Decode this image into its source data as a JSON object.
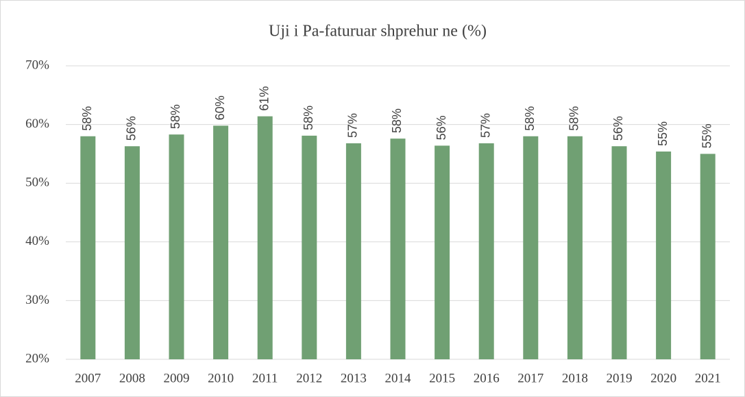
{
  "chart_data": {
    "type": "bar",
    "title": "Uji i Pa-faturuar shprehur ne (%)",
    "categories": [
      "2007",
      "2008",
      "2009",
      "2010",
      "2011",
      "2012",
      "2013",
      "2014",
      "2015",
      "2016",
      "2017",
      "2018",
      "2019",
      "2020",
      "2021"
    ],
    "values": [
      58.0,
      56.3,
      58.3,
      59.8,
      61.4,
      58.1,
      56.8,
      57.6,
      56.4,
      56.8,
      58.0,
      58.0,
      56.3,
      55.4,
      55.0
    ],
    "value_labels": [
      "58%",
      "56%",
      "58%",
      "60%",
      "61%",
      "58%",
      "57%",
      "58%",
      "56%",
      "57%",
      "58%",
      "58%",
      "56%",
      "55%",
      "55%"
    ],
    "color": "#70a073",
    "ylim": [
      20,
      70
    ],
    "yticks": [
      {
        "value": 20,
        "label": "20%"
      },
      {
        "value": 30,
        "label": "30%"
      },
      {
        "value": 40,
        "label": "40%"
      },
      {
        "value": 50,
        "label": "50%"
      },
      {
        "value": 60,
        "label": "60%"
      },
      {
        "value": 70,
        "label": "70%"
      }
    ],
    "grid": true
  }
}
